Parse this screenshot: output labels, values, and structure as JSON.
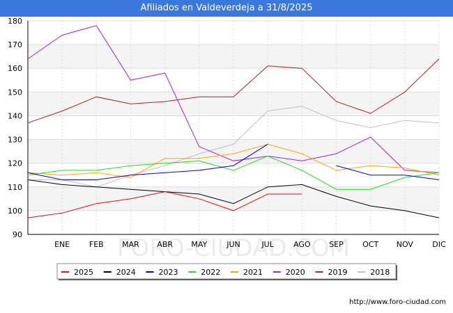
{
  "chart_data": {
    "type": "line",
    "title": "Afiliados en Valdeverdeja a 31/8/2025",
    "xlabel": "",
    "ylabel": "",
    "categories": [
      "",
      "ENE",
      "FEB",
      "MAR",
      "ABR",
      "MAY",
      "JUN",
      "JUL",
      "AGO",
      "SEP",
      "OCT",
      "NOV",
      "DIC"
    ],
    "ylim": [
      90,
      180
    ],
    "yticks": [
      90,
      100,
      110,
      120,
      130,
      140,
      150,
      160,
      170,
      180
    ],
    "grid": true,
    "legend_position": "bottom",
    "series": [
      {
        "name": "2025",
        "color": "#dd1111",
        "values": [
          97,
          99,
          103,
          105,
          108,
          105,
          100,
          107,
          107,
          null,
          null,
          null,
          null
        ]
      },
      {
        "name": "2024",
        "color": "#000000",
        "values": [
          113,
          111,
          110,
          109,
          108,
          107,
          103,
          110,
          111,
          106,
          102,
          100,
          97
        ]
      },
      {
        "name": "2023",
        "color": "#0000dd",
        "values": [
          116,
          113,
          113,
          115,
          116,
          117,
          119,
          128,
          null,
          119,
          115,
          115,
          113
        ]
      },
      {
        "name": "2022",
        "color": "#22dd22",
        "values": [
          115,
          117,
          117,
          119,
          120,
          121,
          117,
          123,
          117,
          109,
          109,
          114,
          116
        ]
      },
      {
        "name": "2021",
        "color": "#ffa500",
        "values": [
          116,
          115,
          116,
          114,
          122,
          122,
          124,
          128,
          124,
          117,
          119,
          118,
          115
        ]
      },
      {
        "name": "2020",
        "color": "#a020f0",
        "values": [
          164,
          174,
          178,
          155,
          158,
          127,
          121,
          123,
          121,
          124,
          131,
          117,
          116
        ]
      },
      {
        "name": "2019",
        "color": "#aa2222",
        "values": [
          137,
          142,
          148,
          145,
          146,
          148,
          148,
          161,
          160,
          146,
          141,
          150,
          164
        ]
      },
      {
        "name": "2018",
        "color": "#c0c0c0",
        "values": [
          113,
          113,
          110,
          115,
          119,
          124,
          128,
          142,
          144,
          138,
          135,
          138,
          137
        ]
      }
    ]
  },
  "watermark": "FORO-CIUDAD.COM",
  "source_url": "http://www.foro-ciudad.com"
}
